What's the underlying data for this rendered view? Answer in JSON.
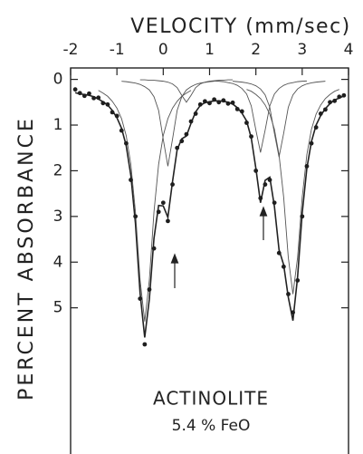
{
  "chart_data": {
    "type": "line",
    "x_label": "VELOCITY (mm/sec)",
    "y_label": "PERCENT ABSORBANCE",
    "annotations": [
      "ACTINOLITE",
      "5.4 % FeO"
    ],
    "xaxis_position": "top",
    "yaxis_inverted": true,
    "xlim": [
      -2,
      4
    ],
    "xticks": [
      -2,
      -1,
      0,
      1,
      2,
      3,
      4
    ],
    "ylim": [
      -0.25,
      8.2
    ],
    "yticks": [
      0,
      1,
      2,
      3,
      4,
      5
    ],
    "x": [
      -1.9,
      -1.8,
      -1.7,
      -1.6,
      -1.5,
      -1.4,
      -1.3,
      -1.2,
      -1.1,
      -1.0,
      -0.9,
      -0.8,
      -0.7,
      -0.6,
      -0.5,
      -0.4,
      -0.3,
      -0.2,
      -0.1,
      0.0,
      0.1,
      0.2,
      0.3,
      0.4,
      0.5,
      0.6,
      0.7,
      0.8,
      0.9,
      1.0,
      1.1,
      1.2,
      1.3,
      1.4,
      1.5,
      1.6,
      1.7,
      1.8,
      1.9,
      2.0,
      2.1,
      2.2,
      2.3,
      2.4,
      2.5,
      2.6,
      2.7,
      2.8,
      2.9,
      3.0,
      3.1,
      3.2,
      3.3,
      3.4,
      3.5,
      3.6,
      3.7,
      3.8,
      3.9
    ],
    "series": [
      {
        "style": "markers",
        "color": "#1e1e1e",
        "values": [
          0.22,
          0.3,
          0.36,
          0.31,
          0.41,
          0.4,
          0.52,
          0.55,
          0.72,
          0.8,
          1.12,
          1.4,
          2.2,
          3.0,
          4.8,
          5.8,
          4.6,
          3.7,
          2.9,
          2.7,
          3.1,
          2.3,
          1.5,
          1.35,
          1.2,
          0.92,
          0.75,
          0.55,
          0.48,
          0.52,
          0.44,
          0.5,
          0.46,
          0.53,
          0.51,
          0.65,
          0.7,
          0.95,
          1.25,
          2.0,
          2.6,
          2.3,
          2.2,
          2.7,
          3.8,
          4.1,
          4.7,
          5.1,
          4.4,
          3.0,
          1.9,
          1.4,
          1.05,
          0.75,
          0.66,
          0.5,
          0.47,
          0.38,
          0.35
        ]
      },
      {
        "style": "line",
        "color": "#222222",
        "width": 1.6,
        "values": [
          0.29,
          0.32,
          0.33,
          0.35,
          0.38,
          0.43,
          0.49,
          0.56,
          0.68,
          0.84,
          1.07,
          1.45,
          2.1,
          3.15,
          4.68,
          5.65,
          4.81,
          3.48,
          2.76,
          2.77,
          3.02,
          2.24,
          1.54,
          1.3,
          1.24,
          0.96,
          0.71,
          0.57,
          0.51,
          0.49,
          0.47,
          0.47,
          0.48,
          0.5,
          0.54,
          0.62,
          0.74,
          0.91,
          1.28,
          1.95,
          2.7,
          2.21,
          2.14,
          2.78,
          3.73,
          4.06,
          4.77,
          5.28,
          4.33,
          2.93,
          1.95,
          1.36,
          1.0,
          0.79,
          0.64,
          0.53,
          0.45,
          0.41,
          0.36
        ]
      },
      {
        "style": "line",
        "color": "#555555",
        "width": 0.9,
        "x": [
          -1.4,
          -1.3,
          -1.2,
          -1.1,
          -1.0,
          -0.9,
          -0.8,
          -0.7,
          -0.6,
          -0.5,
          -0.4,
          -0.3,
          -0.2,
          -0.1,
          0.0,
          0.1,
          0.2,
          0.3,
          0.4,
          0.5,
          0.6
        ],
        "values": [
          0.24,
          0.3,
          0.37,
          0.48,
          0.63,
          0.86,
          1.23,
          1.86,
          2.9,
          4.39,
          5.3,
          4.39,
          2.9,
          1.86,
          1.23,
          0.86,
          0.63,
          0.48,
          0.37,
          0.3,
          0.24
        ]
      },
      {
        "style": "line",
        "color": "#555555",
        "width": 0.9,
        "x": [
          -0.9,
          -0.8,
          -0.7,
          -0.6,
          -0.5,
          -0.4,
          -0.3,
          -0.2,
          -0.1,
          0.0,
          0.1,
          0.2,
          0.3,
          0.4,
          0.5,
          0.6,
          0.7,
          0.8,
          0.9,
          1.0,
          1.1
        ],
        "values": [
          0.042,
          0.05,
          0.065,
          0.08,
          0.11,
          0.16,
          0.23,
          0.38,
          0.68,
          1.31,
          1.9,
          1.31,
          0.68,
          0.38,
          0.23,
          0.16,
          0.11,
          0.08,
          0.065,
          0.05,
          0.042
        ]
      },
      {
        "style": "line",
        "color": "#555555",
        "width": 0.9,
        "x": [
          -0.5,
          -0.4,
          -0.3,
          -0.2,
          -0.1,
          0.0,
          0.1,
          0.2,
          0.3,
          0.4,
          0.5,
          0.6,
          0.7,
          0.8,
          0.9,
          1.0,
          1.1,
          1.2,
          1.3,
          1.4,
          1.5
        ],
        "values": [
          0.01,
          0.01,
          0.02,
          0.02,
          0.03,
          0.04,
          0.06,
          0.1,
          0.18,
          0.35,
          0.5,
          0.35,
          0.18,
          0.1,
          0.06,
          0.04,
          0.03,
          0.02,
          0.02,
          0.01,
          0.01
        ]
      },
      {
        "style": "line",
        "color": "#555555",
        "width": 0.9,
        "x": [
          1.1,
          1.2,
          1.3,
          1.4,
          1.5,
          1.6,
          1.7,
          1.8,
          1.9,
          2.0,
          2.1,
          2.2,
          2.3,
          2.4,
          2.5,
          2.6,
          2.7,
          2.8,
          2.9,
          3.0,
          3.1
        ],
        "values": [
          0.035,
          0.04,
          0.05,
          0.07,
          0.09,
          0.13,
          0.2,
          0.32,
          0.58,
          1.11,
          1.6,
          1.11,
          0.58,
          0.32,
          0.2,
          0.13,
          0.09,
          0.07,
          0.05,
          0.04,
          0.035
        ]
      },
      {
        "style": "line",
        "color": "#555555",
        "width": 0.9,
        "x": [
          1.5,
          1.6,
          1.7,
          1.8,
          1.9,
          2.0,
          2.1,
          2.2,
          2.3,
          2.4,
          2.5,
          2.6,
          2.7,
          2.8,
          2.9,
          3.0,
          3.1,
          3.2,
          3.3,
          3.4,
          3.5
        ],
        "values": [
          0.04,
          0.05,
          0.06,
          0.075,
          0.1,
          0.14,
          0.21,
          0.34,
          0.61,
          1.18,
          1.7,
          1.18,
          0.61,
          0.34,
          0.21,
          0.14,
          0.1,
          0.075,
          0.06,
          0.05,
          0.04
        ]
      },
      {
        "style": "line",
        "color": "#555555",
        "width": 0.9,
        "x": [
          1.8,
          1.9,
          2.0,
          2.1,
          2.2,
          2.3,
          2.4,
          2.5,
          2.6,
          2.7,
          2.8,
          2.9,
          3.0,
          3.1,
          3.2,
          3.3,
          3.4,
          3.5,
          3.6,
          3.7,
          3.8
        ],
        "values": [
          0.22,
          0.26,
          0.33,
          0.42,
          0.56,
          0.76,
          1.09,
          1.65,
          2.58,
          3.9,
          4.7,
          3.9,
          2.58,
          1.65,
          1.09,
          0.76,
          0.56,
          0.42,
          0.33,
          0.26,
          0.22
        ]
      }
    ]
  }
}
